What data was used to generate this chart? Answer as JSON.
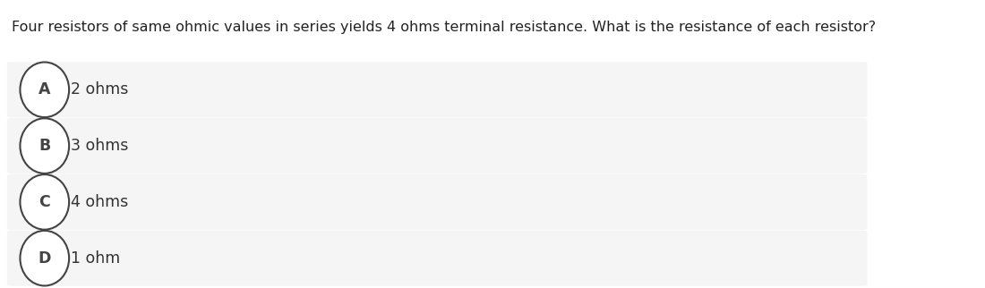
{
  "question": "Four resistors of same ohmic values in series yields 4 ohms terminal resistance. What is the resistance of each resistor?",
  "options": [
    {
      "label": "A",
      "text": "2 ohms"
    },
    {
      "label": "B",
      "text": "3 ohms"
    },
    {
      "label": "C",
      "text": "4 ohms"
    },
    {
      "label": "D",
      "text": "1 ohm"
    }
  ],
  "background_color": "#ffffff",
  "option_bg_color": "#f5f5f5",
  "option_border_color": "#e0e0e0",
  "circle_edge_color": "#444444",
  "circle_face_color": "#ffffff",
  "text_color": "#333333",
  "question_color": "#222222",
  "question_fontsize": 11.5,
  "option_fontsize": 12.5,
  "label_fontsize": 12.5,
  "fig_width": 11.0,
  "fig_height": 3.22,
  "dpi": 100
}
